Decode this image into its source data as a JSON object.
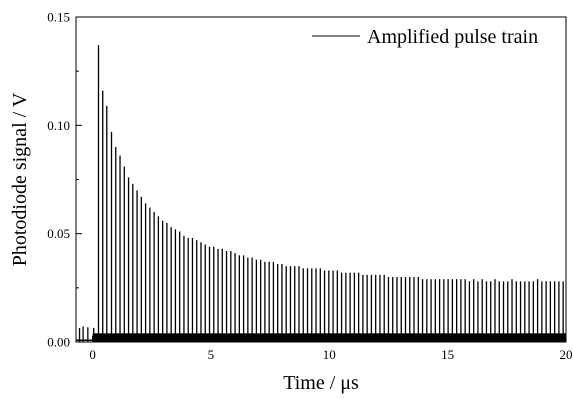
{
  "chart_data": {
    "type": "line",
    "title": "",
    "xlabel": "Time / μs",
    "ylabel": "Photodiode signal / V",
    "xlim": [
      -0.7,
      20
    ],
    "ylim": [
      0,
      0.15
    ],
    "xticks": [
      0,
      5,
      10,
      15,
      20
    ],
    "xtick_labels": [
      "0",
      "5",
      "10",
      "15",
      "20"
    ],
    "yticks": [
      0.0,
      0.05,
      0.1,
      0.15
    ],
    "ytick_labels": [
      "0.00",
      "0.05",
      "0.10",
      "0.15"
    ],
    "grid": false,
    "legend_position": "top-right",
    "line_color": "#000000",
    "series": [
      {
        "name": "Amplified pulse train",
        "pulse_times": [
          -0.55,
          -0.4,
          -0.2,
          0.05,
          0.25,
          0.43,
          0.6,
          0.8,
          0.98,
          1.16,
          1.34,
          1.52,
          1.7,
          1.88,
          2.06,
          2.24,
          2.42,
          2.6,
          2.78,
          2.96,
          3.14,
          3.32,
          3.5,
          3.68,
          3.86,
          4.04,
          4.22,
          4.4,
          4.58,
          4.76,
          4.94,
          5.12,
          5.3,
          5.48,
          5.66,
          5.84,
          6.02,
          6.2,
          6.38,
          6.56,
          6.74,
          6.92,
          7.1,
          7.28,
          7.46,
          7.64,
          7.82,
          8.0,
          8.18,
          8.36,
          8.54,
          8.72,
          8.9,
          9.08,
          9.26,
          9.44,
          9.62,
          9.8,
          9.98,
          10.16,
          10.34,
          10.52,
          10.7,
          10.88,
          11.06,
          11.24,
          11.42,
          11.6,
          11.78,
          11.96,
          12.14,
          12.32,
          12.5,
          12.68,
          12.86,
          13.04,
          13.22,
          13.4,
          13.58,
          13.76,
          13.94,
          14.12,
          14.3,
          14.48,
          14.66,
          14.84,
          15.02,
          15.2,
          15.38,
          15.56,
          15.74,
          15.92,
          16.1,
          16.28,
          16.46,
          16.64,
          16.82,
          17.0,
          17.18,
          17.36,
          17.54,
          17.72,
          17.9,
          18.08,
          18.26,
          18.44,
          18.62,
          18.8,
          18.98,
          19.16,
          19.34,
          19.52,
          19.7,
          19.88
        ],
        "pulse_peaks": [
          0.0065,
          0.0072,
          0.0068,
          0.0065,
          0.137,
          0.116,
          0.109,
          0.097,
          0.09,
          0.086,
          0.081,
          0.076,
          0.073,
          0.07,
          0.067,
          0.064,
          0.062,
          0.06,
          0.058,
          0.056,
          0.055,
          0.053,
          0.052,
          0.051,
          0.049,
          0.048,
          0.048,
          0.047,
          0.046,
          0.045,
          0.044,
          0.044,
          0.043,
          0.043,
          0.042,
          0.042,
          0.041,
          0.04,
          0.04,
          0.039,
          0.039,
          0.038,
          0.038,
          0.037,
          0.037,
          0.037,
          0.036,
          0.036,
          0.035,
          0.035,
          0.035,
          0.035,
          0.034,
          0.034,
          0.034,
          0.034,
          0.034,
          0.033,
          0.033,
          0.033,
          0.033,
          0.032,
          0.032,
          0.032,
          0.032,
          0.032,
          0.031,
          0.031,
          0.031,
          0.031,
          0.031,
          0.031,
          0.03,
          0.03,
          0.03,
          0.03,
          0.03,
          0.03,
          0.03,
          0.03,
          0.029,
          0.029,
          0.029,
          0.029,
          0.029,
          0.029,
          0.029,
          0.029,
          0.029,
          0.029,
          0.029,
          0.028,
          0.029,
          0.028,
          0.029,
          0.028,
          0.028,
          0.029,
          0.028,
          0.028,
          0.028,
          0.029,
          0.028,
          0.028,
          0.028,
          0.028,
          0.028,
          0.029,
          0.028,
          0.028,
          0.028,
          0.028,
          0.028,
          0.028
        ],
        "baseline_band": [
          0,
          0.004
        ]
      }
    ]
  }
}
